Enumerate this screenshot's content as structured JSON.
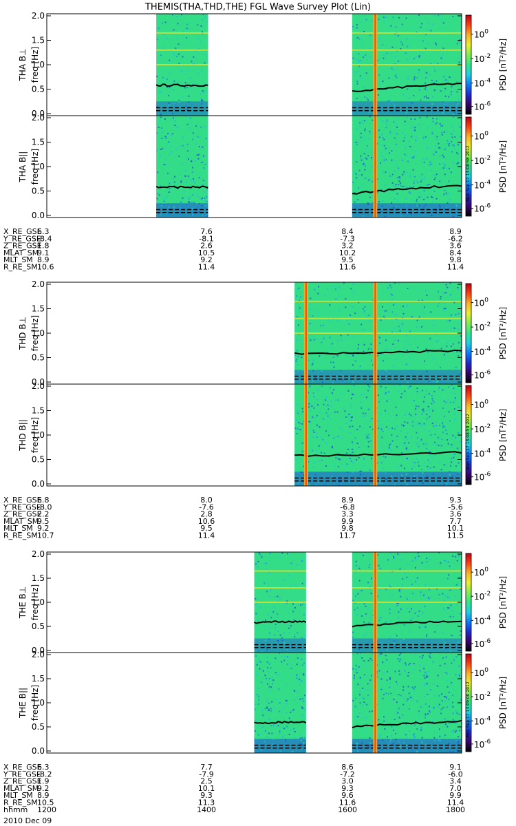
{
  "title": "THEMIS(THA,THD,THE) FGL Wave Survey Plot (Lin)",
  "colors": {
    "background": "#ffffff",
    "spectrogram_base": "#33dd88",
    "harmonic_line": "#d8e030",
    "event_line": "#ffaa22",
    "event_core": "#ee3300",
    "gyro_line": "#000000",
    "frame": "#000000"
  },
  "date_label": "2010 Dec 09",
  "colorbar": {
    "label": "PSD [nT²/Hz]",
    "ticks": [
      {
        "base": "10",
        "exp": "0"
      },
      {
        "base": "10",
        "exp": "-2"
      },
      {
        "base": "10",
        "exp": "-4"
      },
      {
        "base": "10",
        "exp": "-6"
      }
    ],
    "colors": [
      "#000000",
      "#3a0070",
      "#1d2bd0",
      "#0a7bff",
      "#19d3e6",
      "#2ee88a",
      "#7ef04a",
      "#e9f02a",
      "#ffb21d",
      "#ff4010",
      "#c00010"
    ],
    "stamps": [
      "Mon Sep 17 13:08:58 2012",
      "Mon Sep 17 13:08:59 2012",
      "Mon Sep 17 13:09:00 2012"
    ]
  },
  "chart_data": [
    {
      "type": "heatmap",
      "probe": "THA",
      "ylabel_perp": "THA B⊥",
      "ylabel_par": "THA B||",
      "freq_label": "freq [Hz]",
      "ylim": [
        0,
        2.0
      ],
      "yticks": [
        "2.0",
        "1.5",
        "1.0",
        "0.5",
        "0.0"
      ],
      "data_intervals_hhmm": [
        [
          1335,
          1420
        ],
        [
          1625,
          1800
        ]
      ],
      "event_times_hhmm": [
        1645
      ],
      "gyro_freq_hz": [
        [
          0.58,
          0.58,
          0.58
        ],
        [
          0.45,
          0.55,
          0.62
        ]
      ],
      "harmonic_freqs_hz": [
        1.65,
        1.3,
        1.0
      ],
      "ephemeris": [
        {
          "name": "X_RE_GSE",
          "values": [
            "6.3",
            "7.6",
            "8.4",
            "8.9"
          ]
        },
        {
          "name": "Y_RE_GSE",
          "values": [
            "-8.4",
            "-8.1",
            "-7.3",
            "-6.2"
          ]
        },
        {
          "name": "Z_RE_GSE",
          "values": [
            "1.8",
            "2.6",
            "3.2",
            "3.6"
          ]
        },
        {
          "name": "MLAT_SM",
          "values": [
            "9.1",
            "10.5",
            "10.2",
            "8.4"
          ]
        },
        {
          "name": "MLT_SM",
          "values": [
            "8.9",
            "9.2",
            "9.5",
            "9.8"
          ]
        },
        {
          "name": "R_RE_SM",
          "values": [
            "10.6",
            "11.4",
            "11.6",
            "11.4"
          ]
        }
      ]
    },
    {
      "type": "heatmap",
      "probe": "THD",
      "ylabel_perp": "THD B⊥",
      "ylabel_par": "THD B||",
      "freq_label": "freq [Hz]",
      "ylim": [
        0,
        2.0
      ],
      "yticks": [
        "2.0",
        "1.5",
        "1.0",
        "0.5",
        "0.0"
      ],
      "data_intervals_hhmm": [
        [
          1535,
          1800
        ]
      ],
      "event_times_hhmm": [
        1545,
        1645
      ],
      "gyro_freq_hz": [
        [
          0.58,
          0.6,
          0.65
        ],
        [
          0.58,
          0.6,
          0.65
        ]
      ],
      "harmonic_freqs_hz": [
        1.65,
        1.3,
        1.0
      ],
      "ephemeris": [
        {
          "name": "X_RE_GSE",
          "values": [
            "6.8",
            "8.0",
            "8.9",
            "9.3"
          ]
        },
        {
          "name": "Y_RE_GSE",
          "values": [
            "-8.0",
            "-7.6",
            "-6.8",
            "-5.6"
          ]
        },
        {
          "name": "Z_RE_GSE",
          "values": [
            "2.2",
            "2.8",
            "3.3",
            "3.6"
          ]
        },
        {
          "name": "MLAT_SM",
          "values": [
            "9.5",
            "10.6",
            "9.9",
            "7.7"
          ]
        },
        {
          "name": "MLT_SM",
          "values": [
            "9.2",
            "9.5",
            "9.8",
            "10.1"
          ]
        },
        {
          "name": "R_RE_SM",
          "values": [
            "10.7",
            "11.4",
            "11.7",
            "11.5"
          ]
        }
      ]
    },
    {
      "type": "heatmap",
      "probe": "THE",
      "ylabel_perp": "THE B⊥",
      "ylabel_par": "THE B||",
      "freq_label": "freq [Hz]",
      "ylim": [
        0,
        2.0
      ],
      "yticks": [
        "2.0",
        "1.5",
        "1.0",
        "0.5",
        "0.0"
      ],
      "data_intervals_hhmm": [
        [
          1500,
          1545
        ],
        [
          1625,
          1800
        ]
      ],
      "event_times_hhmm": [
        1645
      ],
      "gyro_freq_hz": [
        [
          0.58,
          0.6,
          0.6
        ],
        [
          0.5,
          0.57,
          0.62
        ]
      ],
      "harmonic_freqs_hz": [
        1.65,
        1.3,
        1.0
      ],
      "ephemeris": [
        {
          "name": "X_RE_GSE",
          "values": [
            "6.3",
            "7.7",
            "8.6",
            "9.1"
          ]
        },
        {
          "name": "Y_RE_GSE",
          "values": [
            "-8.2",
            "-7.9",
            "-7.2",
            "-6.0"
          ]
        },
        {
          "name": "Z_RE_GSE",
          "values": [
            "1.9",
            "2.5",
            "3.0",
            "3.4"
          ]
        },
        {
          "name": "MLAT_SM",
          "values": [
            "9.2",
            "10.1",
            "9.3",
            "7.0"
          ]
        },
        {
          "name": "MLT_SM",
          "values": [
            "8.9",
            "9.3",
            "9.6",
            "9.9"
          ]
        },
        {
          "name": "R_RE_SM",
          "values": [
            "10.5",
            "11.3",
            "11.6",
            "11.4"
          ]
        }
      ]
    }
  ],
  "time_axis": {
    "label": "hhmm",
    "ticks": [
      "1200",
      "1400",
      "1600",
      "1800"
    ],
    "xlim_hhmm": [
      1200,
      1800
    ]
  }
}
